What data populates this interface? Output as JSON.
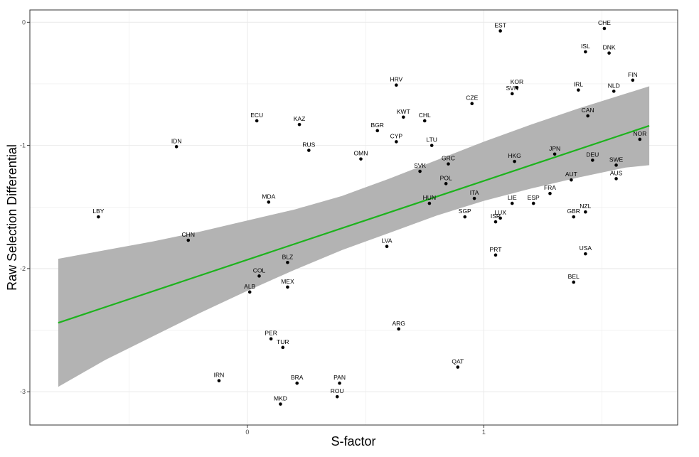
{
  "chart_data": {
    "type": "scatter",
    "xlabel": "S-factor",
    "ylabel": "Raw Selection Differential",
    "xlim": [
      -0.92,
      1.82
    ],
    "ylim": [
      -3.27,
      0.1
    ],
    "x_ticks": [
      0,
      1
    ],
    "x_tick_labels": [
      "0",
      "1"
    ],
    "y_ticks": [
      0,
      -1,
      -2,
      -3
    ],
    "y_tick_labels": [
      "0",
      "-1",
      "-2",
      "-3"
    ],
    "grid": true,
    "legend": "none",
    "colors": {
      "panel_background": "#ffffff",
      "grid": "#ebebeb",
      "points": "#000000",
      "fit_line": "#1db31d",
      "confidence_band": "#b3b3b3"
    },
    "points": [
      {
        "label": "CHE",
        "x": 1.51,
        "y": -0.05
      },
      {
        "label": "EST",
        "x": 1.07,
        "y": -0.07
      },
      {
        "label": "ISL",
        "x": 1.43,
        "y": -0.24
      },
      {
        "label": "DNK",
        "x": 1.53,
        "y": -0.25
      },
      {
        "label": "FIN",
        "x": 1.63,
        "y": -0.47
      },
      {
        "label": "NLD",
        "x": 1.55,
        "y": -0.56
      },
      {
        "label": "IRL",
        "x": 1.4,
        "y": -0.55
      },
      {
        "label": "KOR",
        "x": 1.14,
        "y": -0.53
      },
      {
        "label": "SVN",
        "x": 1.12,
        "y": -0.58
      },
      {
        "label": "HRV",
        "x": 0.63,
        "y": -0.51
      },
      {
        "label": "CZE",
        "x": 0.95,
        "y": -0.66
      },
      {
        "label": "CAN",
        "x": 1.44,
        "y": -0.76
      },
      {
        "label": "ECU",
        "x": 0.04,
        "y": -0.8
      },
      {
        "label": "KAZ",
        "x": 0.22,
        "y": -0.83
      },
      {
        "label": "KWT",
        "x": 0.66,
        "y": -0.77
      },
      {
        "label": "CHL",
        "x": 0.75,
        "y": -0.8
      },
      {
        "label": "BGR",
        "x": 0.55,
        "y": -0.88
      },
      {
        "label": "CYP",
        "x": 0.63,
        "y": -0.97
      },
      {
        "label": "LTU",
        "x": 0.78,
        "y": -1.0
      },
      {
        "label": "NOR",
        "x": 1.66,
        "y": -0.95
      },
      {
        "label": "IDN",
        "x": -0.3,
        "y": -1.01
      },
      {
        "label": "RUS",
        "x": 0.26,
        "y": -1.04
      },
      {
        "label": "OMN",
        "x": 0.48,
        "y": -1.11
      },
      {
        "label": "JPN",
        "x": 1.3,
        "y": -1.07
      },
      {
        "label": "GRC",
        "x": 0.85,
        "y": -1.15
      },
      {
        "label": "HKG",
        "x": 1.13,
        "y": -1.13
      },
      {
        "label": "DEU",
        "x": 1.46,
        "y": -1.12
      },
      {
        "label": "SWE",
        "x": 1.56,
        "y": -1.16
      },
      {
        "label": "SVK",
        "x": 0.73,
        "y": -1.21
      },
      {
        "label": "AUT",
        "x": 1.37,
        "y": -1.28
      },
      {
        "label": "AUS",
        "x": 1.56,
        "y": -1.27
      },
      {
        "label": "POL",
        "x": 0.84,
        "y": -1.31
      },
      {
        "label": "FRA",
        "x": 1.28,
        "y": -1.39
      },
      {
        "label": "ITA",
        "x": 0.96,
        "y": -1.43
      },
      {
        "label": "MDA",
        "x": 0.09,
        "y": -1.46
      },
      {
        "label": "HUN",
        "x": 0.77,
        "y": -1.47
      },
      {
        "label": "LIE",
        "x": 1.12,
        "y": -1.47
      },
      {
        "label": "ESP",
        "x": 1.21,
        "y": -1.47
      },
      {
        "label": "LBY",
        "x": -0.63,
        "y": -1.58
      },
      {
        "label": "SGP",
        "x": 0.92,
        "y": -1.58
      },
      {
        "label": "LUX",
        "x": 1.07,
        "y": -1.59
      },
      {
        "label": "ISR",
        "x": 1.05,
        "y": -1.62
      },
      {
        "label": "NZL",
        "x": 1.43,
        "y": -1.54
      },
      {
        "label": "GBR",
        "x": 1.38,
        "y": -1.58
      },
      {
        "label": "CHN",
        "x": -0.25,
        "y": -1.77
      },
      {
        "label": "LVA",
        "x": 0.59,
        "y": -1.82
      },
      {
        "label": "PRT",
        "x": 1.05,
        "y": -1.89
      },
      {
        "label": "USA",
        "x": 1.43,
        "y": -1.88
      },
      {
        "label": "BLZ",
        "x": 0.17,
        "y": -1.95
      },
      {
        "label": "COL",
        "x": 0.05,
        "y": -2.06
      },
      {
        "label": "BEL",
        "x": 1.38,
        "y": -2.11
      },
      {
        "label": "ALB",
        "x": 0.01,
        "y": -2.19
      },
      {
        "label": "MEX",
        "x": 0.17,
        "y": -2.15
      },
      {
        "label": "ARG",
        "x": 0.64,
        "y": -2.49
      },
      {
        "label": "PER",
        "x": 0.1,
        "y": -2.57
      },
      {
        "label": "TUR",
        "x": 0.15,
        "y": -2.64
      },
      {
        "label": "QAT",
        "x": 0.89,
        "y": -2.8
      },
      {
        "label": "IRN",
        "x": -0.12,
        "y": -2.91
      },
      {
        "label": "BRA",
        "x": 0.21,
        "y": -2.93
      },
      {
        "label": "PAN",
        "x": 0.39,
        "y": -2.93
      },
      {
        "label": "ROU",
        "x": 0.38,
        "y": -3.04
      },
      {
        "label": "MKD",
        "x": 0.14,
        "y": -3.1
      }
    ],
    "fit_line": {
      "x": [
        -0.8,
        1.7
      ],
      "y": [
        -2.44,
        -0.84
      ]
    },
    "confidence_band": {
      "x": [
        -0.8,
        -0.6,
        -0.4,
        -0.2,
        0.0,
        0.2,
        0.4,
        0.6,
        0.8,
        1.0,
        1.2,
        1.4,
        1.6,
        1.7
      ],
      "upper": [
        -1.92,
        -1.85,
        -1.78,
        -1.7,
        -1.61,
        -1.52,
        -1.41,
        -1.27,
        -1.12,
        -0.97,
        -0.83,
        -0.7,
        -0.58,
        -0.52
      ],
      "lower": [
        -2.96,
        -2.74,
        -2.55,
        -2.36,
        -2.18,
        -2.01,
        -1.85,
        -1.71,
        -1.57,
        -1.45,
        -1.35,
        -1.26,
        -1.18,
        -1.16
      ]
    }
  }
}
